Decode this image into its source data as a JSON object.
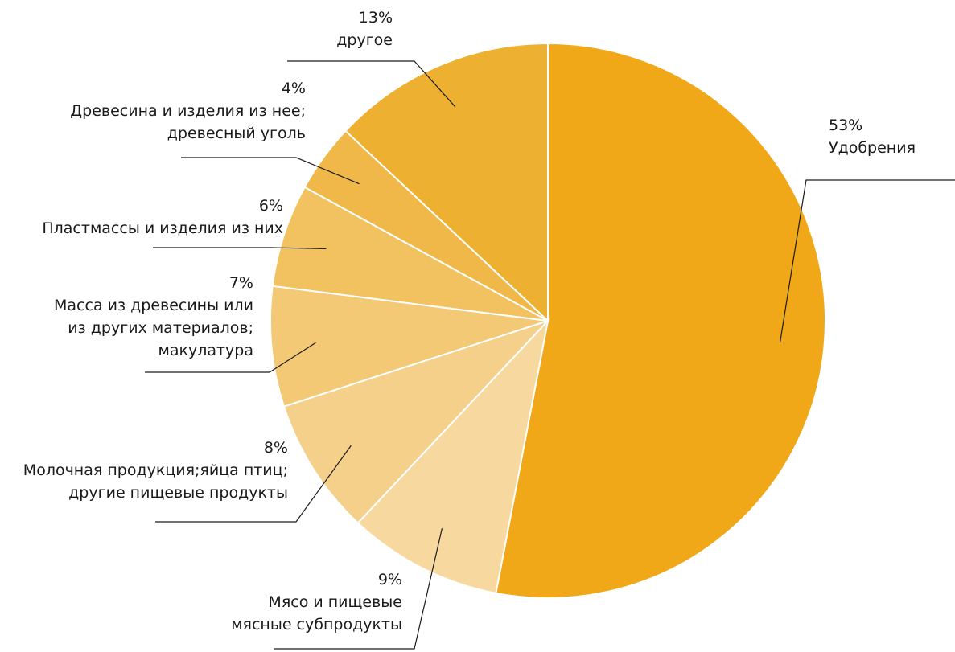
{
  "chart_data": {
    "type": "pie",
    "slices": [
      {
        "pct_label": "53%",
        "label_lines": [
          "Удобрения"
        ],
        "value": 53,
        "color": "#F0A818"
      },
      {
        "pct_label": "9%",
        "label_lines": [
          "Мясо и пищевые",
          "мясные субпродукты"
        ],
        "value": 9,
        "color": "#F7D9A0"
      },
      {
        "pct_label": "8%",
        "label_lines": [
          "Молочная продукция;яйца птиц;",
          "другие пищевые продукты"
        ],
        "value": 8,
        "color": "#F5D08A"
      },
      {
        "pct_label": "7%",
        "label_lines": [
          "Масса из древесины или",
          "из других материалов;",
          "макулатура"
        ],
        "value": 7,
        "color": "#F4C975"
      },
      {
        "pct_label": "6%",
        "label_lines": [
          "Пластмассы и изделия из них"
        ],
        "value": 6,
        "color": "#F2C160"
      },
      {
        "pct_label": "4%",
        "label_lines": [
          "Древесина и изделия из нее;",
          "древесный уголь"
        ],
        "value": 4,
        "color": "#F0B848"
      },
      {
        "pct_label": "13%",
        "label_lines": [
          "другое"
        ],
        "value": 13,
        "color": "#EEB030"
      }
    ]
  }
}
